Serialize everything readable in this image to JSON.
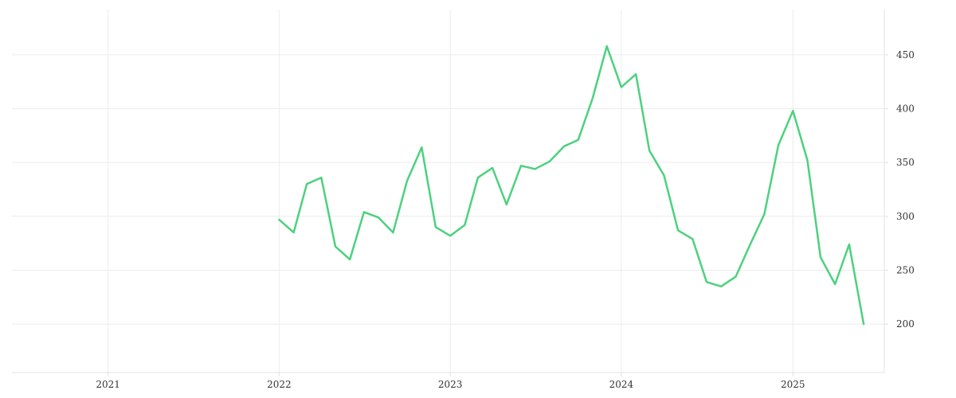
{
  "chart_data": {
    "type": "line",
    "title": "",
    "xlabel": "",
    "ylabel": "",
    "x_axis": {
      "type": "date",
      "range": [
        "2020-06-10",
        "2025-07-15"
      ],
      "ticks": [
        {
          "date": "2021-01-01",
          "label": "2021"
        },
        {
          "date": "2022-01-01",
          "label": "2022"
        },
        {
          "date": "2023-01-01",
          "label": "2023"
        },
        {
          "date": "2024-01-01",
          "label": "2024"
        },
        {
          "date": "2025-01-01",
          "label": "2025"
        }
      ]
    },
    "y_axis": {
      "position": "right",
      "range": [
        155,
        492
      ],
      "ticks": [
        200,
        250,
        300,
        350,
        400,
        450
      ]
    },
    "grid": true,
    "legend": "none",
    "series": [
      {
        "color": "#4cd17e",
        "points": [
          [
            "2022-01-01",
            297
          ],
          [
            "2022-02-01",
            285
          ],
          [
            "2022-03-01",
            330
          ],
          [
            "2022-04-01",
            336
          ],
          [
            "2022-05-01",
            272
          ],
          [
            "2022-06-01",
            260
          ],
          [
            "2022-07-01",
            304
          ],
          [
            "2022-08-01",
            299
          ],
          [
            "2022-09-01",
            285
          ],
          [
            "2022-10-01",
            333
          ],
          [
            "2022-11-01",
            364
          ],
          [
            "2022-12-01",
            290
          ],
          [
            "2023-01-01",
            282
          ],
          [
            "2023-02-01",
            292
          ],
          [
            "2023-03-01",
            336
          ],
          [
            "2023-04-01",
            345
          ],
          [
            "2023-05-01",
            311
          ],
          [
            "2023-06-01",
            347
          ],
          [
            "2023-07-01",
            344
          ],
          [
            "2023-08-01",
            351
          ],
          [
            "2023-09-01",
            365
          ],
          [
            "2023-10-01",
            371
          ],
          [
            "2023-11-01",
            410
          ],
          [
            "2023-12-01",
            458
          ],
          [
            "2024-01-01",
            420
          ],
          [
            "2024-02-01",
            432
          ],
          [
            "2024-03-01",
            361
          ],
          [
            "2024-04-01",
            338
          ],
          [
            "2024-05-01",
            287
          ],
          [
            "2024-06-01",
            279
          ],
          [
            "2024-07-01",
            239
          ],
          [
            "2024-08-01",
            235
          ],
          [
            "2024-09-01",
            244
          ],
          [
            "2024-10-01",
            273
          ],
          [
            "2024-11-01",
            302
          ],
          [
            "2024-12-01",
            366
          ],
          [
            "2025-01-01",
            398
          ],
          [
            "2025-02-01",
            352
          ],
          [
            "2025-03-01",
            262
          ],
          [
            "2025-04-01",
            237
          ],
          [
            "2025-05-01",
            274
          ],
          [
            "2025-06-01",
            200
          ]
        ]
      }
    ]
  }
}
